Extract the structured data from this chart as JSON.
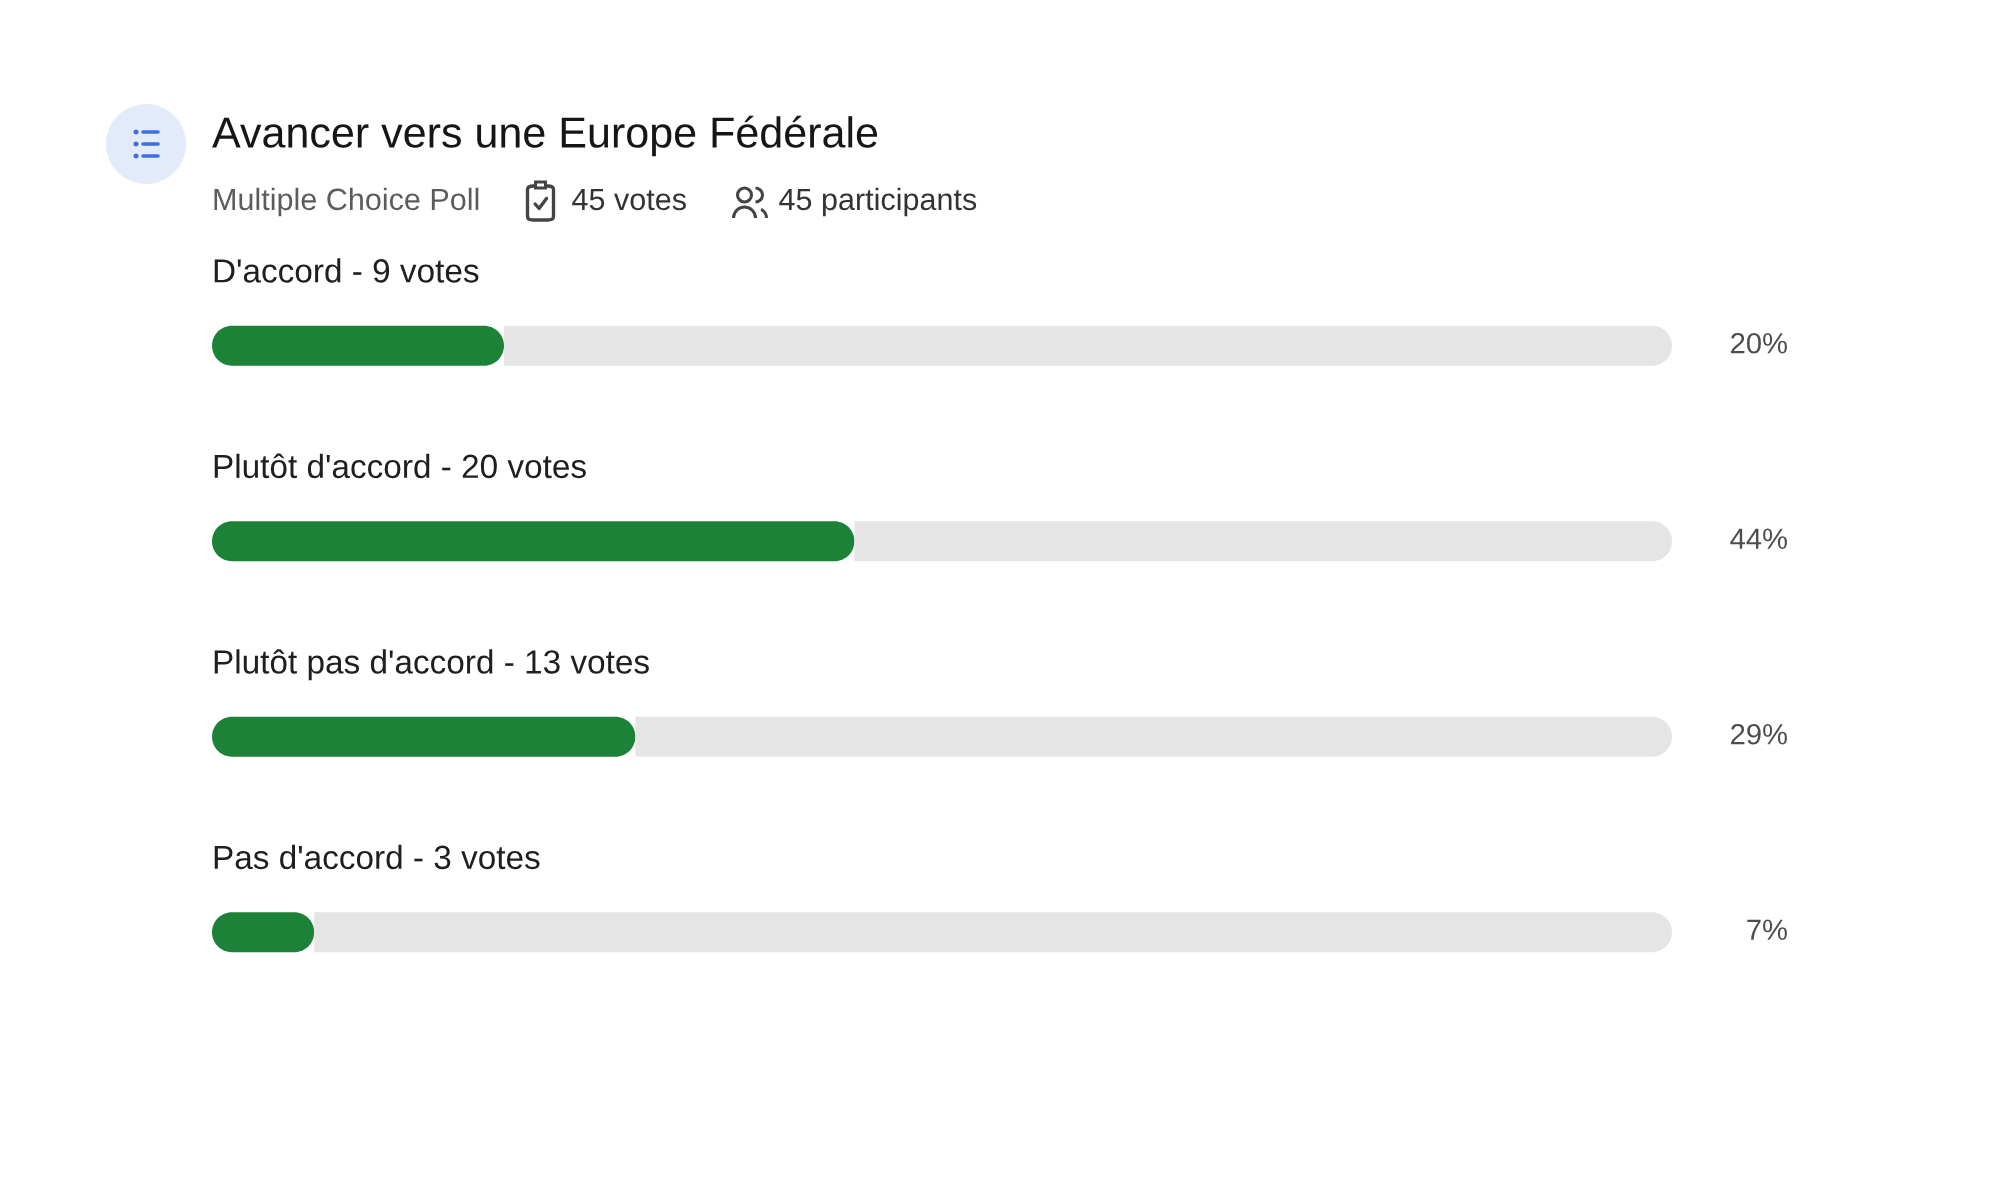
{
  "chart_data": {
    "type": "bar",
    "orientation": "horizontal",
    "stacked": true,
    "title": "Avancer vers une Europe Fédérale",
    "subtitle": "Multiple Choice Poll",
    "annotations": [
      "45 votes",
      "45 participants"
    ],
    "categories": [
      "D'accord - 9 votes",
      "Plutôt d'accord - 20 votes",
      "Plutôt pas d'accord - 13 votes",
      "Pas d'accord - 3 votes"
    ],
    "series": [
      {
        "color": "#1b8238",
        "values": [
          20,
          44,
          29,
          7
        ],
        "value_labels": [
          "20%",
          "44%",
          "29%",
          "7%"
        ]
      },
      {
        "color": "#e5e5e5",
        "values": [
          80,
          56,
          71,
          93
        ]
      }
    ],
    "xlim": [
      0,
      100
    ],
    "tick_labels": "y"
  }
}
